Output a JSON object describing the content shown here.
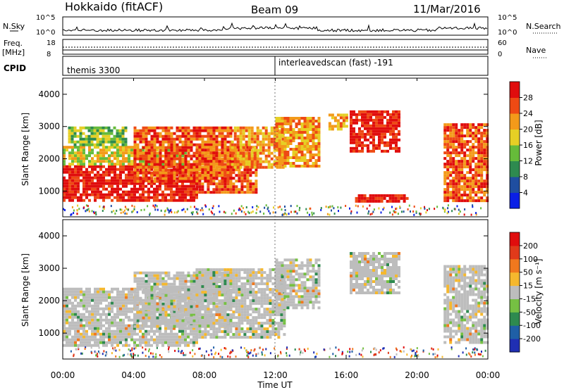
{
  "header": {
    "station": "Hokkaido (fitACF)",
    "beam": "Beam 09",
    "date": "11/Mar/2016"
  },
  "strip_labels": {
    "nsky": "N.Sky",
    "nsearch": "N.Search",
    "freq_line1": "Freq.",
    "freq_line2": "[MHz]",
    "nave": "Nave",
    "cpid": "CPID",
    "noise_ticks_left": [
      "10^5",
      "10^0"
    ],
    "noise_ticks_right": [
      "10^5",
      "10^0"
    ],
    "freq_ticks": [
      "18",
      "8"
    ],
    "nave_ticks": [
      "60",
      "0"
    ]
  },
  "cpid_labels": {
    "first": "themis 3300",
    "second": "interleavedscan (fast) -191"
  },
  "chart_data": [
    {
      "type": "heatmap",
      "panel": "power",
      "ylabel": "Slant Range [km]",
      "yticks": [
        "1000",
        "2000",
        "3000",
        "4000"
      ],
      "ylim": [
        200,
        4500
      ],
      "xlim": [
        0,
        24
      ],
      "colorbar_label": "Power [dB]",
      "colorbar_ticks": [
        "4",
        "8",
        "12",
        "16",
        "20",
        "24",
        "28"
      ],
      "colorbar_colors": [
        "#0a1fe6",
        "#1f4ea0",
        "#2e8a4f",
        "#66bb3a",
        "#e6cf25",
        "#f39a1a",
        "#ee4a14",
        "#e00d0d"
      ],
      "bands": [
        {
          "start": 0.0,
          "end": 7.5,
          "range_min": 700,
          "range_max": 1800,
          "level": 7
        },
        {
          "start": 0.0,
          "end": 7.0,
          "range_min": 1800,
          "range_max": 2400,
          "level": 4
        },
        {
          "start": 0.3,
          "end": 3.5,
          "range_min": 2400,
          "range_max": 3000,
          "level": 3
        },
        {
          "start": 4.0,
          "end": 9.5,
          "range_min": 1300,
          "range_max": 3000,
          "level": 6
        },
        {
          "start": 7.5,
          "end": 11.0,
          "range_min": 1000,
          "range_max": 2400,
          "level": 6
        },
        {
          "start": 9.5,
          "end": 12.5,
          "range_min": 1700,
          "range_max": 3000,
          "level": 5
        },
        {
          "start": 12.0,
          "end": 14.5,
          "range_min": 1800,
          "range_max": 3300,
          "level": 5
        },
        {
          "start": 16.2,
          "end": 19.0,
          "range_min": 2200,
          "range_max": 3500,
          "level": 7
        },
        {
          "start": 15.0,
          "end": 16.0,
          "range_min": 2900,
          "range_max": 3400,
          "level": 5
        },
        {
          "start": 21.5,
          "end": 24.0,
          "range_min": 700,
          "range_max": 3100,
          "level": 6
        },
        {
          "start": 16.5,
          "end": 19.5,
          "range_min": 700,
          "range_max": 900,
          "level": 7
        }
      ]
    },
    {
      "type": "heatmap",
      "panel": "velocity",
      "ylabel": "Slant Range [km]",
      "yticks": [
        "1000",
        "2000",
        "3000",
        "4000"
      ],
      "ylim": [
        200,
        4500
      ],
      "xlim": [
        0,
        24
      ],
      "colorbar_label": "Velocity [m s⁻¹]",
      "colorbar_ticks": [
        "200",
        "100",
        "50",
        "15",
        "-15",
        "-50",
        "-100",
        "-200"
      ],
      "colorbar_colors": [
        "#1f2fb3",
        "#1f5fa6",
        "#2e8a4f",
        "#76c043",
        "#bdbdbd",
        "#f5b82e",
        "#f0781e",
        "#e03a1a",
        "#e00d0d"
      ],
      "bands": [
        {
          "start": 0.0,
          "end": 7.5,
          "range_min": 600,
          "range_max": 2400,
          "level": 4
        },
        {
          "start": 4.0,
          "end": 9.5,
          "range_min": 1200,
          "range_max": 2900,
          "level": 4
        },
        {
          "start": 7.5,
          "end": 12.5,
          "range_min": 900,
          "range_max": 3000,
          "level": 4
        },
        {
          "start": 12.0,
          "end": 14.5,
          "range_min": 1800,
          "range_max": 3300,
          "level": 4
        },
        {
          "start": 16.2,
          "end": 19.0,
          "range_min": 2200,
          "range_max": 3500,
          "level": 4
        },
        {
          "start": 21.5,
          "end": 24.0,
          "range_min": 700,
          "range_max": 3100,
          "level": 4
        }
      ]
    }
  ],
  "time_axis": {
    "label": "Time UT",
    "ticks": [
      "00:00",
      "04:00",
      "08:00",
      "12:00",
      "16:00",
      "20:00",
      "00:00"
    ]
  }
}
